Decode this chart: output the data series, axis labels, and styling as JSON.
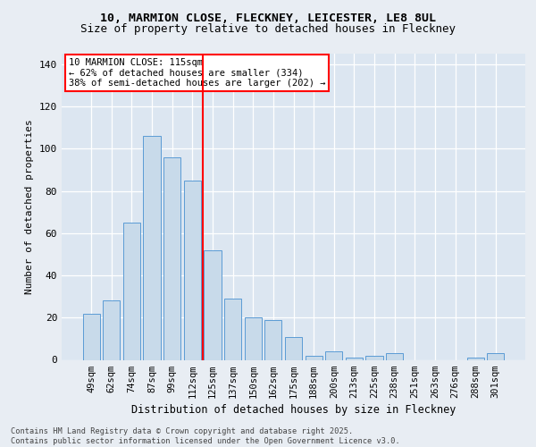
{
  "title1": "10, MARMION CLOSE, FLECKNEY, LEICESTER, LE8 8UL",
  "title2": "Size of property relative to detached houses in Fleckney",
  "xlabel": "Distribution of detached houses by size in Fleckney",
  "ylabel": "Number of detached properties",
  "categories": [
    "49sqm",
    "62sqm",
    "74sqm",
    "87sqm",
    "99sqm",
    "112sqm",
    "125sqm",
    "137sqm",
    "150sqm",
    "162sqm",
    "175sqm",
    "188sqm",
    "200sqm",
    "213sqm",
    "225sqm",
    "238sqm",
    "251sqm",
    "263sqm",
    "276sqm",
    "288sqm",
    "301sqm"
  ],
  "bar_values": [
    22,
    28,
    65,
    106,
    96,
    85,
    52,
    29,
    20,
    19,
    11,
    2,
    4,
    1,
    2,
    3,
    0,
    0,
    0,
    1,
    3
  ],
  "bar_color": "#c8daea",
  "bar_edge_color": "#5b9bd5",
  "ref_line_color": "red",
  "ref_line_index": 5.5,
  "annotation_text": "10 MARMION CLOSE: 115sqm\n← 62% of detached houses are smaller (334)\n38% of semi-detached houses are larger (202) →",
  "ylim": [
    0,
    145
  ],
  "yticks": [
    0,
    20,
    40,
    60,
    80,
    100,
    120,
    140
  ],
  "footer": "Contains HM Land Registry data © Crown copyright and database right 2025.\nContains public sector information licensed under the Open Government Licence v3.0.",
  "bg_color": "#e8edf3",
  "plot_bg_color": "#dce6f1",
  "title_fontsize": 9.5,
  "subtitle_fontsize": 9,
  "ylabel_fontsize": 8,
  "xlabel_fontsize": 8.5,
  "tick_fontsize": 7.5,
  "ann_fontsize": 7.5,
  "footer_fontsize": 6.2
}
